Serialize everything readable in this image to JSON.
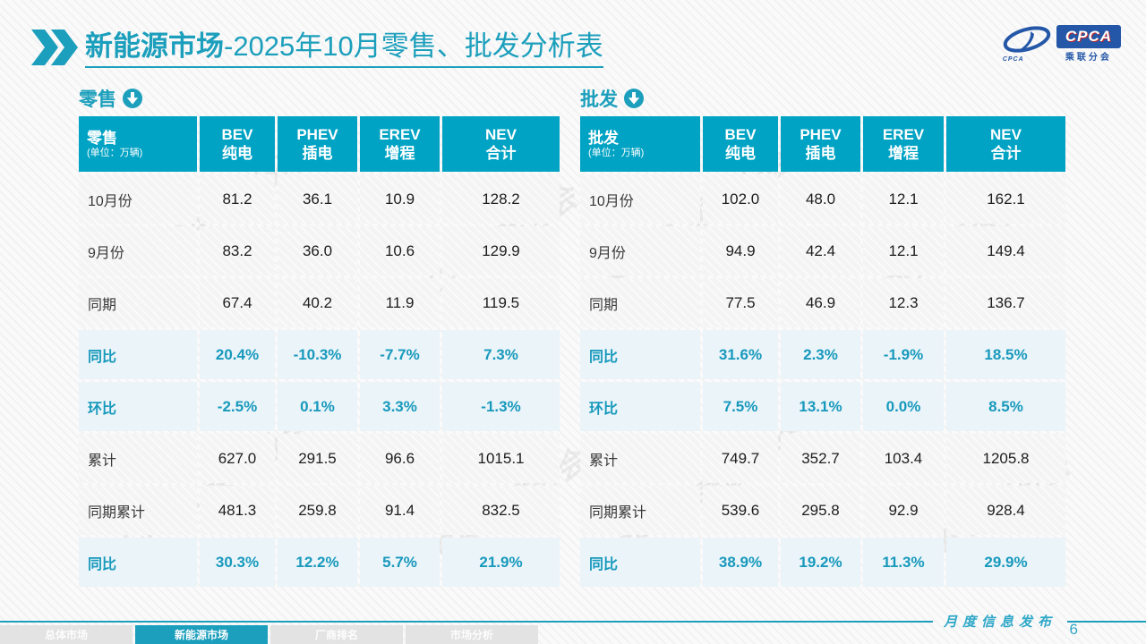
{
  "title": {
    "highlight": "新能源市场",
    "rest": "-2025年10月零售、批发分析表"
  },
  "logo": {
    "box_text": "CPCA",
    "sub_text": "乘联分会",
    "mark_text": "CPCA"
  },
  "watermark_text": "CPCA 乘联分会",
  "colors": {
    "teal_header": "#00A3C4",
    "teal_text": "#1899BC",
    "percent_row_bg": "#EAF4F9",
    "row_bg": "#F4F4F4"
  },
  "icons": {
    "title_icon": "double-chevron-right",
    "section_icon": "circled-down-arrow"
  },
  "tables": [
    {
      "section_label": "零售",
      "header": {
        "label": "零售",
        "unit": "(单位：万辆)",
        "cols": [
          {
            "line1": "BEV",
            "line2": "纯电"
          },
          {
            "line1": "PHEV",
            "line2": "插电"
          },
          {
            "line1": "EREV",
            "line2": "增程"
          },
          {
            "line1": "NEV",
            "line2": "合计"
          }
        ]
      },
      "rows": [
        {
          "label": "10月份",
          "type": "normal",
          "values": [
            "81.2",
            "36.1",
            "10.9",
            "128.2"
          ]
        },
        {
          "label": "9月份",
          "type": "normal",
          "values": [
            "83.2",
            "36.0",
            "10.6",
            "129.9"
          ]
        },
        {
          "label": "同期",
          "type": "normal",
          "values": [
            "67.4",
            "40.2",
            "11.9",
            "119.5"
          ]
        },
        {
          "label": "同比",
          "type": "percent",
          "values": [
            "20.4%",
            "-10.3%",
            "-7.7%",
            "7.3%"
          ]
        },
        {
          "label": "环比",
          "type": "percent",
          "values": [
            "-2.5%",
            "0.1%",
            "3.3%",
            "-1.3%"
          ]
        },
        {
          "label": "累计",
          "type": "normal",
          "values": [
            "627.0",
            "291.5",
            "96.6",
            "1015.1"
          ]
        },
        {
          "label": "同期累计",
          "type": "normal",
          "values": [
            "481.3",
            "259.8",
            "91.4",
            "832.5"
          ]
        },
        {
          "label": "同比",
          "type": "percent",
          "values": [
            "30.3%",
            "12.2%",
            "5.7%",
            "21.9%"
          ]
        }
      ]
    },
    {
      "section_label": "批发",
      "header": {
        "label": "批发",
        "unit": "(单位：万辆)",
        "cols": [
          {
            "line1": "BEV",
            "line2": "纯电"
          },
          {
            "line1": "PHEV",
            "line2": "插电"
          },
          {
            "line1": "EREV",
            "line2": "增程"
          },
          {
            "line1": "NEV",
            "line2": "合计"
          }
        ]
      },
      "rows": [
        {
          "label": "10月份",
          "type": "normal",
          "values": [
            "102.0",
            "48.0",
            "12.1",
            "162.1"
          ]
        },
        {
          "label": "9月份",
          "type": "normal",
          "values": [
            "94.9",
            "42.4",
            "12.1",
            "149.4"
          ]
        },
        {
          "label": "同期",
          "type": "normal",
          "values": [
            "77.5",
            "46.9",
            "12.3",
            "136.7"
          ]
        },
        {
          "label": "同比",
          "type": "percent",
          "values": [
            "31.6%",
            "2.3%",
            "-1.9%",
            "18.5%"
          ]
        },
        {
          "label": "环比",
          "type": "percent",
          "values": [
            "7.5%",
            "13.1%",
            "0.0%",
            "8.5%"
          ]
        },
        {
          "label": "累计",
          "type": "normal",
          "values": [
            "749.7",
            "352.7",
            "103.4",
            "1205.8"
          ]
        },
        {
          "label": "同期累计",
          "type": "normal",
          "values": [
            "539.6",
            "295.8",
            "92.9",
            "928.4"
          ]
        },
        {
          "label": "同比",
          "type": "percent",
          "values": [
            "38.9%",
            "19.2%",
            "11.3%",
            "29.9%"
          ]
        }
      ]
    }
  ],
  "footer": {
    "tabs": [
      {
        "label": "总体市场",
        "active": false
      },
      {
        "label": "新能源市场",
        "active": true
      },
      {
        "label": "厂商排名",
        "active": false
      },
      {
        "label": "市场分析",
        "active": false
      }
    ],
    "publish_label": "月度信息发布",
    "page_number": "6"
  }
}
